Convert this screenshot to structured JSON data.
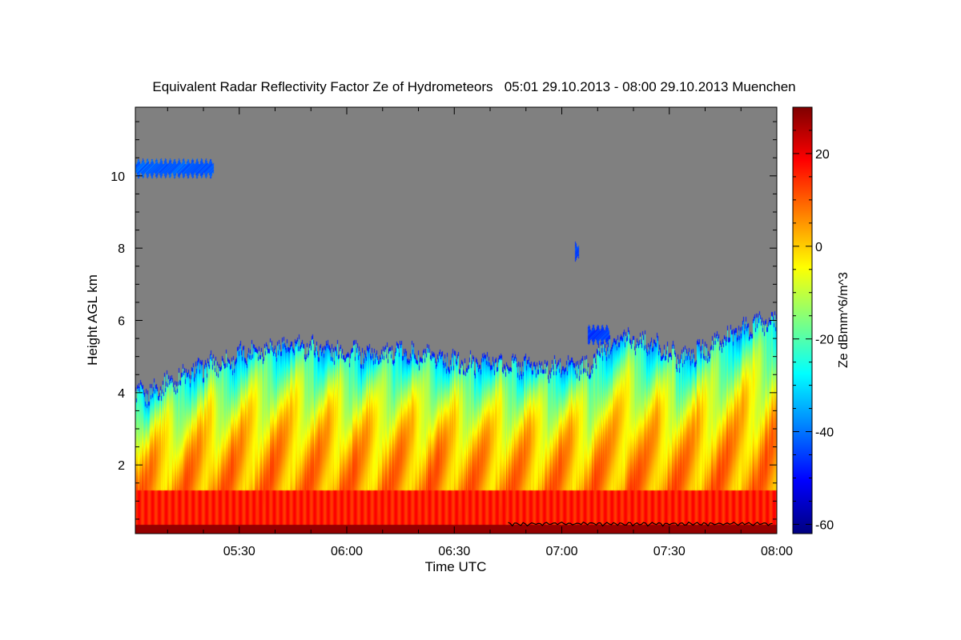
{
  "chart_data": {
    "type": "heatmap",
    "title": "Equivalent Radar Reflectivity Factor Ze of Hydrometeors   05:01 29.10.2013 - 08:00 29.10.2013 Muenchen",
    "xlabel": "Time UTC",
    "ylabel": "Height AGL km",
    "x_ticks": [
      "05:30",
      "06:00",
      "06:30",
      "07:00",
      "07:30",
      "08:00"
    ],
    "y_ticks": [
      "2",
      "4",
      "6",
      "8",
      "10"
    ],
    "x_range_hours": [
      5.0167,
      8.0
    ],
    "y_range_km": [
      0.1,
      11.9
    ],
    "x_tick_hours": [
      5.5,
      6.0,
      6.5,
      7.0,
      7.5,
      8.0
    ],
    "y_tick_km": [
      2,
      4,
      6,
      8,
      10
    ],
    "background_color": "#808080",
    "colorbar": {
      "label": "Ze dBmm^6/m^3",
      "ticks": [
        "20",
        "0",
        "-20",
        "-40",
        "-60"
      ],
      "tick_values": [
        20,
        0,
        -20,
        -40,
        -60
      ],
      "range": [
        -62,
        30
      ],
      "colormap": "jet"
    },
    "cloud_top_km": {
      "hours": [
        5.0167,
        5.08,
        5.15,
        5.25,
        5.35,
        5.45,
        5.55,
        5.65,
        5.75,
        5.85,
        5.95,
        6.05,
        6.15,
        6.25,
        6.35,
        6.45,
        6.55,
        6.65,
        6.75,
        6.85,
        6.95,
        7.05,
        7.12,
        7.2,
        7.28,
        7.36,
        7.45,
        7.55,
        7.65,
        7.75,
        7.85,
        7.95,
        8.0
      ],
      "values": [
        4.0,
        4.0,
        4.3,
        4.5,
        4.8,
        4.9,
        5.2,
        5.3,
        5.3,
        5.3,
        5.2,
        5.1,
        5.1,
        5.2,
        5.0,
        5.0,
        4.8,
        4.9,
        4.8,
        4.8,
        4.7,
        4.8,
        4.7,
        5.3,
        5.6,
        5.5,
        5.3,
        5.0,
        5.2,
        5.5,
        5.8,
        6.0,
        6.0
      ]
    },
    "isolated_echoes": [
      {
        "hours_start": 5.0167,
        "hours_end": 5.38,
        "height_km": 10.2,
        "ze_dbz": -42
      },
      {
        "hours_start": 7.06,
        "hours_end": 7.08,
        "height_km": 7.9,
        "ze_dbz": -45
      },
      {
        "hours_start": 7.12,
        "hours_end": 7.22,
        "height_km": 5.6,
        "ze_dbz": -45
      }
    ]
  }
}
